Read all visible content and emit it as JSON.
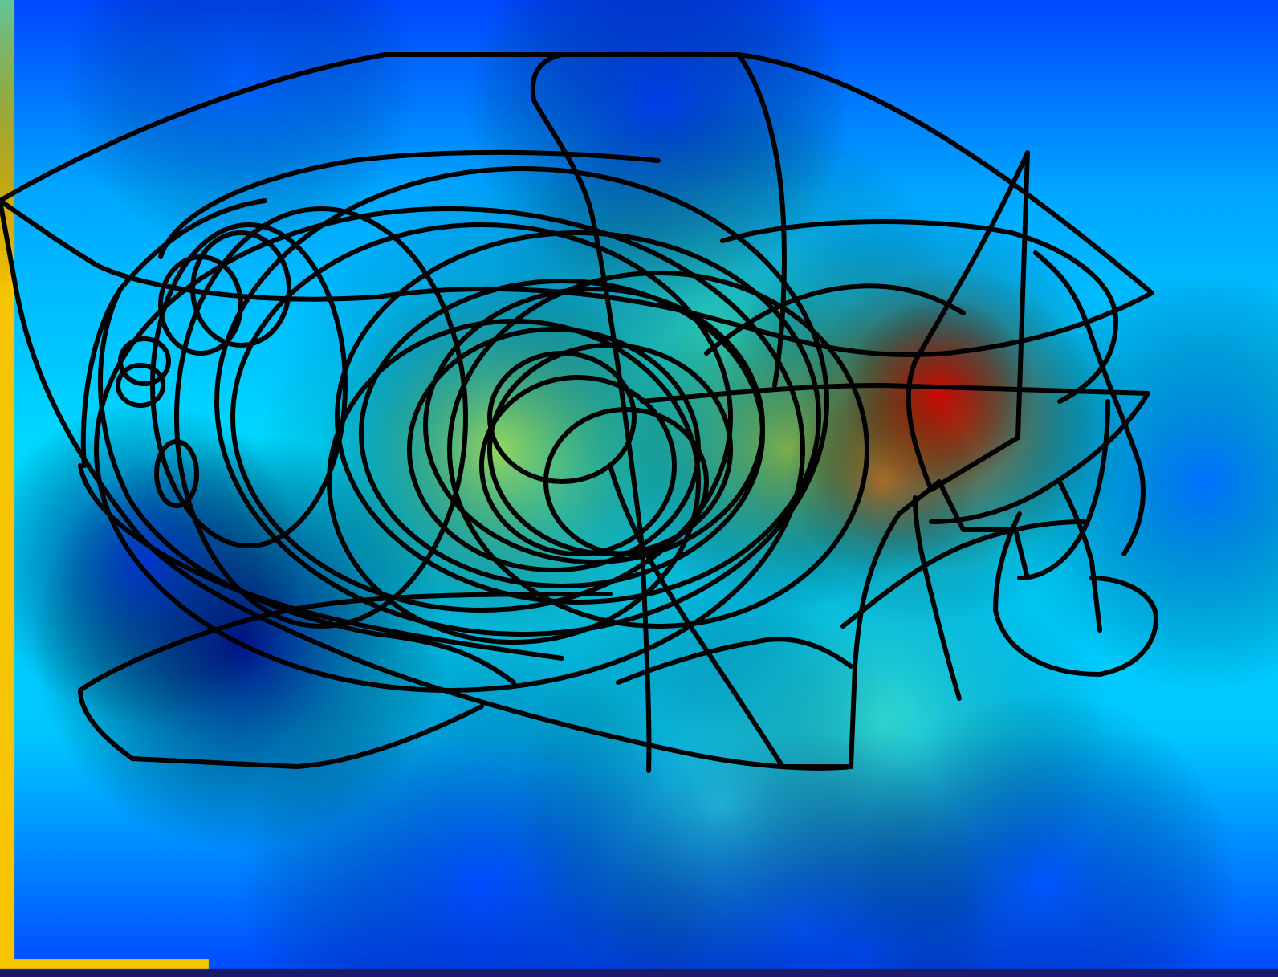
{
  "image": {
    "colors": {
      "colormap_low": "#00008f",
      "colormap_blue": "#0047ff",
      "colormap_cyan": "#00d7ff",
      "colormap_green": "#7dff7a",
      "colormap_yellow": "#ffe100",
      "colormap_red": "#d00000",
      "stroke": "#000000",
      "left_edge": "#f6c400"
    },
    "content": {
      "description_icon": "scribble-heatmap-overlay"
    }
  }
}
